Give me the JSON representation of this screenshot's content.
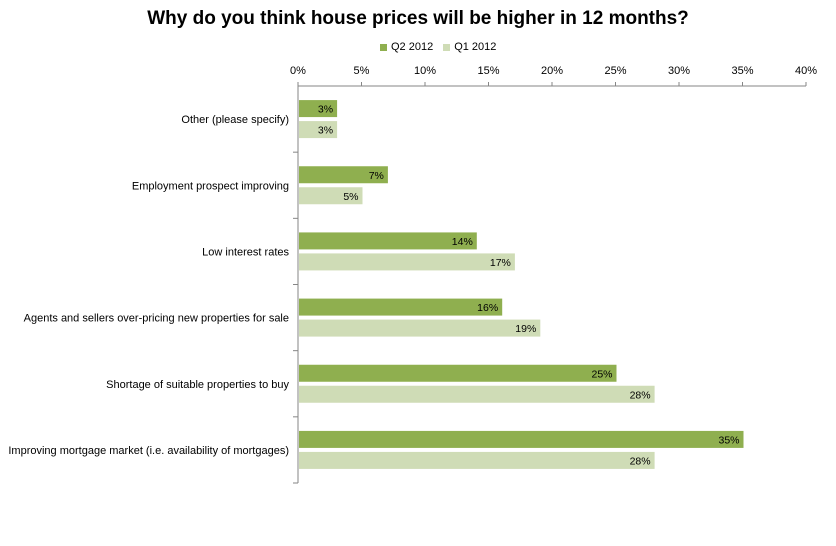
{
  "chart_data": {
    "type": "bar",
    "orientation": "horizontal",
    "title": "Why do you think house prices will be higher in 12 months?",
    "categories": [
      "Other (please specify)",
      "Employment prospect improving",
      "Low interest rates",
      "Agents and sellers over-pricing new properties for sale",
      "Shortage of suitable properties to buy",
      "Improving mortgage market (i.e. availability of mortgages)"
    ],
    "series": [
      {
        "name": "Q2 2012",
        "values": [
          3,
          7,
          14,
          16,
          25,
          35
        ],
        "labels": [
          "3%",
          "7%",
          "14%",
          "16%",
          "25%",
          "35%"
        ],
        "color": "#8faf4f"
      },
      {
        "name": "Q1 2012",
        "values": [
          3,
          5,
          17,
          19,
          28,
          28
        ],
        "labels": [
          "3%",
          "5%",
          "17%",
          "19%",
          "28%",
          "28%"
        ],
        "color": "#cfdcb6"
      }
    ],
    "xlim": [
      0,
      40
    ],
    "x_ticks": [
      0,
      5,
      10,
      15,
      20,
      25,
      30,
      35,
      40
    ],
    "x_tick_labels": [
      "0%",
      "5%",
      "10%",
      "15%",
      "20%",
      "25%",
      "30%",
      "35%",
      "40%"
    ],
    "xaxis_position": "top",
    "grid": false,
    "legend_position": "top"
  }
}
